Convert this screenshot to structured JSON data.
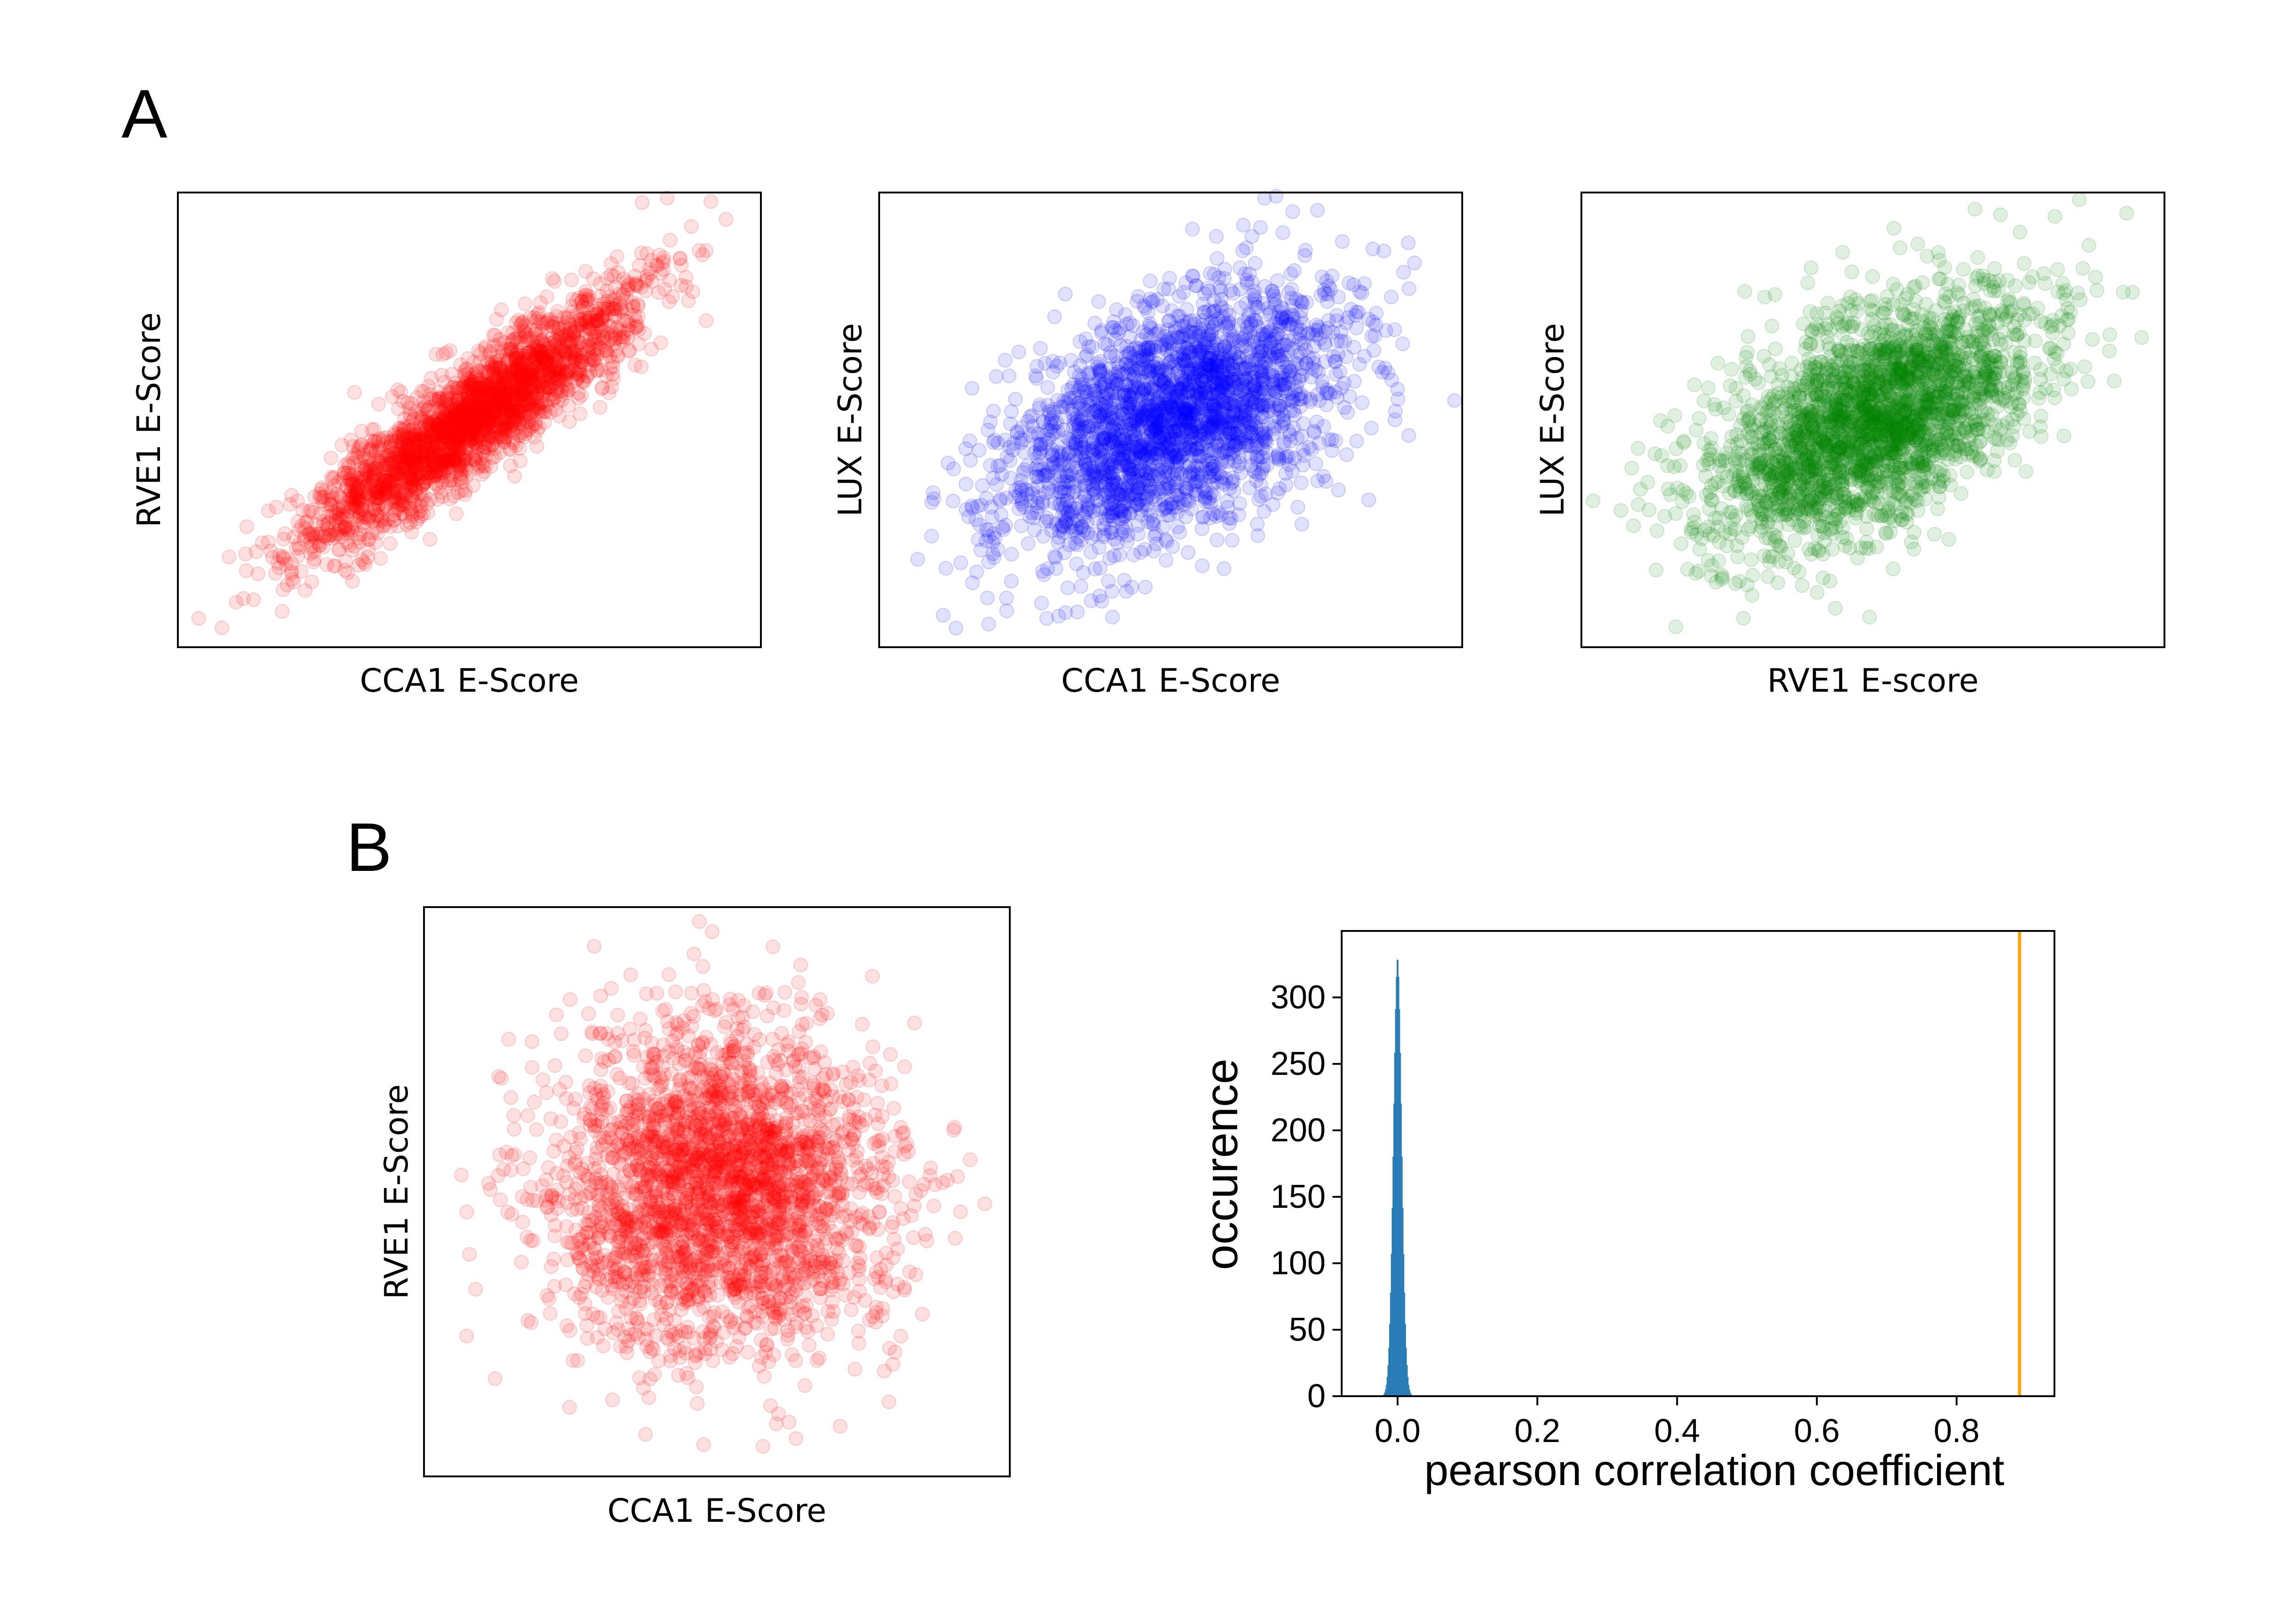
{
  "panels": {
    "a_label": "A",
    "b_label": "B"
  },
  "colors": {
    "red": "#ff0000",
    "blue": "#0000ff",
    "green": "#008000",
    "hist": "#1f77b4",
    "vline": "#ffa500"
  },
  "chart_data": [
    {
      "id": "A1",
      "type": "scatter",
      "xlabel": "CCA1 E-Score",
      "ylabel": "RVE1 E-Score",
      "ticks_shown": false,
      "color": "red",
      "alpha": 0.12,
      "description_of_distribution": {
        "correlation": 0.9,
        "shape": "elongated positive diagonal"
      }
    },
    {
      "id": "A2",
      "type": "scatter",
      "xlabel": "CCA1 E-Score",
      "ylabel": "LUX E-Score",
      "ticks_shown": false,
      "color": "blue",
      "alpha": 0.12,
      "description_of_distribution": {
        "correlation": 0.5,
        "shape": "positive elliptical cloud"
      }
    },
    {
      "id": "A3",
      "type": "scatter",
      "xlabel": "RVE1 E-score",
      "ylabel": "LUX E-Score",
      "ticks_shown": false,
      "color": "green",
      "alpha": 0.12,
      "description_of_distribution": {
        "correlation": 0.55,
        "shape": "positive elliptical cloud"
      }
    },
    {
      "id": "B1",
      "type": "scatter",
      "xlabel": "CCA1 E-Score",
      "ylabel": "RVE1 E-Score",
      "ticks_shown": false,
      "color": "red",
      "alpha": 0.12,
      "description_of_distribution": {
        "correlation": 0.0,
        "shape": "uncorrelated square cloud"
      }
    },
    {
      "id": "B2",
      "type": "bar",
      "subtype": "histogram",
      "xlabel": "pearson correlation coefficient",
      "ylabel": "occurence",
      "xlim": [
        -0.08,
        0.94
      ],
      "ylim": [
        0,
        350
      ],
      "xticks": [
        0.0,
        0.2,
        0.4,
        0.6,
        0.8
      ],
      "xtick_labels": [
        "0.0",
        "0.2",
        "0.4",
        "0.6",
        "0.8"
      ],
      "yticks": [
        0,
        50,
        100,
        150,
        200,
        250,
        300
      ],
      "ytick_labels": [
        "0",
        "50",
        "100",
        "150",
        "200",
        "250",
        "300"
      ],
      "histogram": {
        "center": 0.0,
        "spread": 0.006,
        "peak": 330
      },
      "vertical_line": {
        "x": 0.89,
        "color": "vline"
      }
    }
  ]
}
